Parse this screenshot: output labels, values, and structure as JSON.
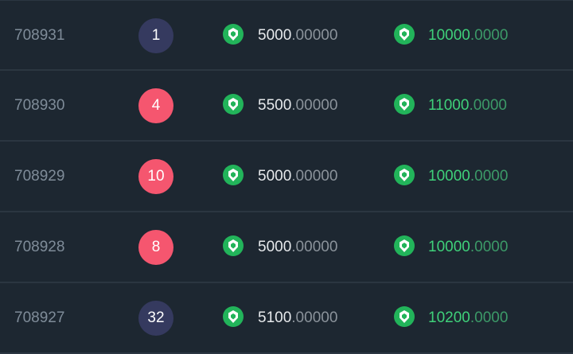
{
  "colors": {
    "background": "#1d2731",
    "badge_dark": "#353a5f",
    "badge_red": "#f5566f",
    "green": "#3fd17a",
    "icon": "#22b45a"
  },
  "icon": "turtle-shield-icon",
  "rows": [
    {
      "id": "708931",
      "badge": "1",
      "badge_style": "dark",
      "amount_int": "5000",
      "amount_dec": ".00000",
      "payout_int": "10000",
      "payout_dec": ".0000"
    },
    {
      "id": "708930",
      "badge": "4",
      "badge_style": "red",
      "amount_int": "5500",
      "amount_dec": ".00000",
      "payout_int": "11000",
      "payout_dec": ".0000"
    },
    {
      "id": "708929",
      "badge": "10",
      "badge_style": "red",
      "amount_int": "5000",
      "amount_dec": ".00000",
      "payout_int": "10000",
      "payout_dec": ".0000"
    },
    {
      "id": "708928",
      "badge": "8",
      "badge_style": "red",
      "amount_int": "5000",
      "amount_dec": ".00000",
      "payout_int": "10000",
      "payout_dec": ".0000"
    },
    {
      "id": "708927",
      "badge": "32",
      "badge_style": "dark",
      "amount_int": "5100",
      "amount_dec": ".00000",
      "payout_int": "10200",
      "payout_dec": ".0000"
    }
  ]
}
